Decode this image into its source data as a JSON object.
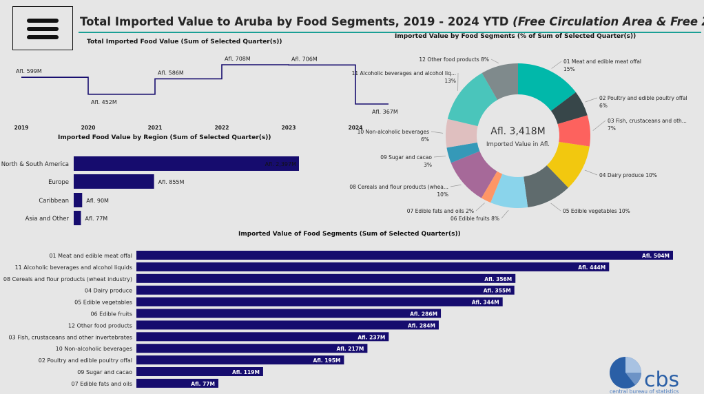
{
  "title_main": "Total Imported Value to Aruba by Food Segments, 2019 - 2024 YTD ",
  "title_sub": "(Free Circulation Area & Free Zone)",
  "logo": {
    "name": "cbs",
    "tagline": "central bureau of statistics"
  },
  "colors": {
    "bar": "#160c6e",
    "line": "#160c6e",
    "accent": "#1a9f95"
  },
  "chart_data": [
    {
      "id": "total_line",
      "type": "line",
      "step": true,
      "title": "Total Imported Food Value (Sum of Selected Quarter(s))",
      "x": [
        "2019",
        "2020",
        "2021",
        "2022",
        "2023",
        "2024"
      ],
      "values": [
        599,
        452,
        586,
        708,
        706,
        367
      ],
      "labels": [
        "Afl. 599M",
        "Afl. 452M",
        "Afl. 586M",
        "Afl. 708M",
        "Afl. 706M",
        "Afl. 367M"
      ]
    },
    {
      "id": "region_bar",
      "type": "bar",
      "orientation": "horizontal",
      "title": "Imported Food Value by Region (Sum of Selected Quarter(s))",
      "categories": [
        "North & South America",
        "Europe",
        "Caribbean",
        "Asia and Other"
      ],
      "values": [
        2397,
        855,
        90,
        77
      ],
      "labels": [
        "Afl. 2,397M",
        "Afl. 855M",
        "Afl. 90M",
        "Afl. 77M"
      ]
    },
    {
      "id": "segment_donut",
      "type": "pie",
      "donut": true,
      "title": "Imported Value by Food Segments (% of Sum of Selected Quarter(s))",
      "center_value": "Afl. 3,418M",
      "center_label": "Imported Value in Afl.",
      "slices": [
        {
          "name": "01 Meat and edible meat offal",
          "pct": "15%",
          "value": 504,
          "color": "#01b8aa"
        },
        {
          "name": "02 Poultry and edible poultry offal",
          "pct": "6%",
          "value": 195,
          "color": "#374649"
        },
        {
          "name": "03 Fish, crustaceans and oth...",
          "pct": "7%",
          "value": 237,
          "color": "#fd625e"
        },
        {
          "name": "04 Dairy produce",
          "pct": "10%",
          "value": 355,
          "color": "#f2c80f"
        },
        {
          "name": "05 Edible vegetables",
          "pct": "10%",
          "value": 344,
          "color": "#5f6b6d"
        },
        {
          "name": "06 Edible fruits",
          "pct": "8%",
          "value": 286,
          "color": "#8ad4eb"
        },
        {
          "name": "07 Edible fats and oils",
          "pct": "2%",
          "value": 77,
          "color": "#fe9666"
        },
        {
          "name": "08 Cereals and flour products (whea...",
          "pct": "10%",
          "value": 356,
          "color": "#a66999"
        },
        {
          "name": "09 Sugar and cacao",
          "pct": "3%",
          "value": 119,
          "color": "#3599b8"
        },
        {
          "name": "10 Non-alcoholic beverages",
          "pct": "6%",
          "value": 217,
          "color": "#dfbfbf"
        },
        {
          "name": "11 Alcoholic beverages and alcohol liq...",
          "pct": "13%",
          "value": 444,
          "color": "#4ac5bb"
        },
        {
          "name": "12 Other food products",
          "pct": "8%",
          "value": 284,
          "color": "#7f8a8c"
        }
      ]
    },
    {
      "id": "segment_bar",
      "type": "bar",
      "orientation": "horizontal",
      "title": "Imported Value of Food Segments (Sum of Selected Quarter(s))",
      "categories": [
        "01 Meat and edible meat offal",
        "11 Alcoholic beverages and alcohol liquids",
        "08 Cereals and flour products (wheat industry)",
        "04 Dairy produce",
        "05 Edible vegetables",
        "06 Edible fruits",
        "12 Other food products",
        "03 Fish, crustaceans and other invertebrates",
        "10 Non-alcoholic beverages",
        "02 Poultry and edible poultry offal",
        "09 Sugar and cacao",
        "07 Edible fats and oils"
      ],
      "values": [
        504,
        444,
        356,
        355,
        344,
        286,
        284,
        237,
        217,
        195,
        119,
        77
      ],
      "labels": [
        "Afl. 504M",
        "Afl. 444M",
        "Afl. 356M",
        "Afl. 355M",
        "Afl. 344M",
        "Afl. 286M",
        "Afl. 284M",
        "Afl. 237M",
        "Afl. 217M",
        "Afl. 195M",
        "Afl. 119M",
        "Afl. 77M"
      ]
    }
  ]
}
